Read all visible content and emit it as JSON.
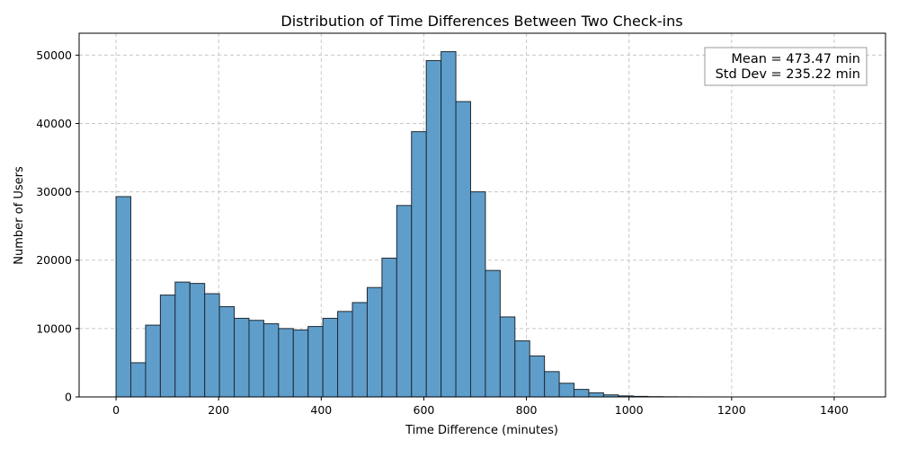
{
  "chart_data": {
    "type": "bar",
    "title": "Distribution of Time Differences Between Two Check-ins",
    "xlabel": "Time Difference (minutes)",
    "ylabel": "Number of Users",
    "xlim": [
      -72,
      1500
    ],
    "ylim": [
      0,
      53200
    ],
    "xticks": [
      0,
      200,
      400,
      600,
      800,
      1000,
      1200,
      1400
    ],
    "yticks": [
      0,
      10000,
      20000,
      30000,
      40000,
      50000
    ],
    "grid": true,
    "bar_color": "#5f9ecb",
    "bar_edge_color": "#1f2a33",
    "bin_width": 28.8,
    "bin_edges_start": 0,
    "values": [
      29300,
      5000,
      10500,
      14900,
      16800,
      16600,
      15100,
      13200,
      11500,
      11200,
      10700,
      10000,
      9800,
      10300,
      11500,
      12500,
      13800,
      16000,
      20300,
      28000,
      38800,
      49200,
      50500,
      43200,
      30000,
      18500,
      11700,
      8200,
      6000,
      3700,
      2000,
      1100,
      600,
      300,
      150,
      80,
      40,
      20,
      10,
      5,
      3,
      2,
      1,
      1,
      1,
      1,
      0,
      0,
      0,
      1
    ],
    "annotation": {
      "lines": [
        "Mean = 473.47 min",
        "Std Dev = 235.22 min"
      ],
      "placement": "top-right"
    }
  }
}
